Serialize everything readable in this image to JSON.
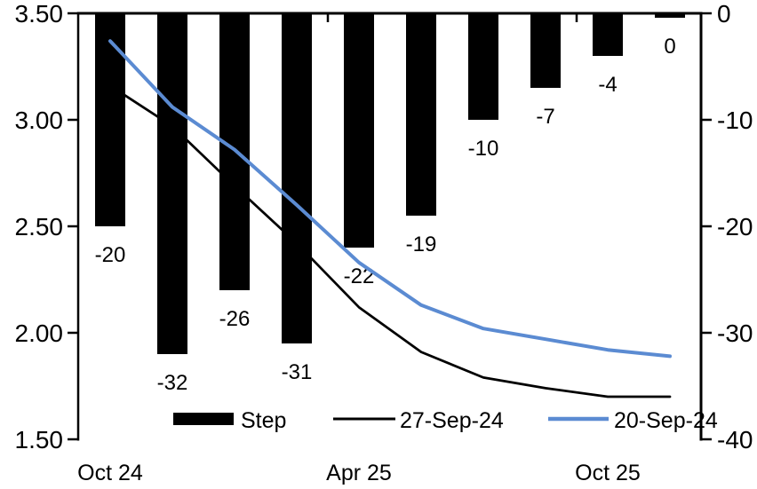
{
  "chart_data": {
    "type": "combo",
    "title": "",
    "num_categories": 10,
    "series": [
      {
        "name": "Step",
        "type": "bar",
        "axis": "right",
        "color": "#000000",
        "values": [
          -20,
          -32,
          -26,
          -31,
          -22,
          -19,
          -10,
          -7,
          -4,
          0
        ],
        "data_labels": [
          "-20",
          "-32",
          "-26",
          "-31",
          "-22",
          "-19",
          "-10",
          "-7",
          "-4",
          "0"
        ]
      },
      {
        "name": "27-Sep-24",
        "type": "line",
        "axis": "left",
        "color": "#000000",
        "stroke_width": 2.75,
        "values": [
          3.16,
          2.97,
          2.69,
          2.42,
          2.12,
          1.91,
          1.79,
          1.74,
          1.7,
          1.7
        ]
      },
      {
        "name": "20-Sep-24",
        "type": "line",
        "axis": "left",
        "color": "#5B8BD2",
        "stroke_width": 4,
        "values": [
          3.37,
          3.06,
          2.86,
          2.6,
          2.33,
          2.13,
          2.02,
          1.97,
          1.92,
          1.89
        ]
      }
    ],
    "left_axis": {
      "min": 1.5,
      "max": 3.5,
      "tick_labels": [
        "3.50",
        "3.00",
        "2.50",
        "2.00",
        "1.50"
      ]
    },
    "right_axis": {
      "min": -40,
      "max": 0,
      "tick_labels": [
        "0",
        "-10",
        "-20",
        "-30",
        "-40"
      ]
    },
    "x_axis": {
      "ticks": [
        {
          "label": "Oct 24",
          "category_index": 0
        },
        {
          "label": "Apr 25",
          "category_index": 4
        },
        {
          "label": "Oct 25",
          "category_index": 8
        }
      ]
    },
    "legend": {
      "position": "bottom-inside",
      "entries": [
        "Step",
        "27-Sep-24",
        "20-Sep-24"
      ]
    },
    "grid": "off"
  }
}
